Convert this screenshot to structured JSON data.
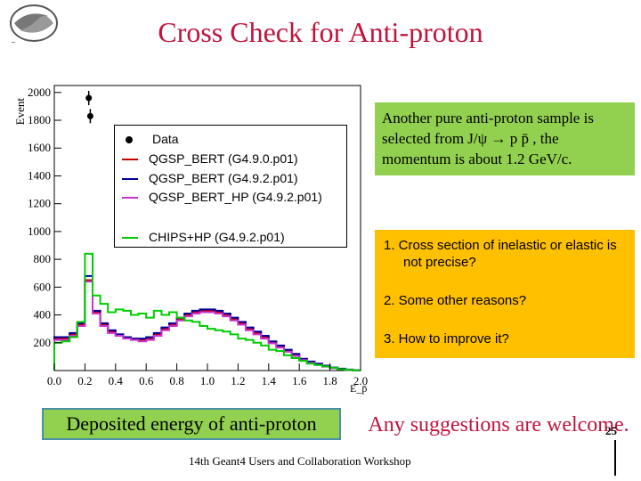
{
  "slide": {
    "title": "Cross Check for Anti-proton",
    "caption": "Deposited energy of anti-proton",
    "suggestion": "Any suggestions are welcome.",
    "footer": "14th Geant4 Users and Collaboration Workshop",
    "page_number": "25",
    "info_text": "Another pure anti-proton sample is selected from J/ψ → p p̄ , the momentum is  about 1.2 GeV/c.",
    "reasons": [
      "1.  Cross section of inelastic or elastic is not precise?",
      "2.  Some other reasons?",
      "3.  How to improve it?"
    ],
    "colors": {
      "title": "#c0143c",
      "info_bg": "#92d050",
      "reasons_bg": "#ffc000",
      "caption_bg": "#92d050"
    }
  },
  "chart_data": {
    "type": "histogram",
    "ylabel": "Event",
    "xlabel": "E_p̄",
    "xlim": [
      0.0,
      2.0
    ],
    "ylim": [
      0,
      2050
    ],
    "x_ticks": [
      "0.0",
      "0.2",
      "0.4",
      "0.6",
      "0.8",
      "1.0",
      "1.2",
      "1.4",
      "1.6",
      "1.8",
      "2.0"
    ],
    "y_ticks": [
      "200",
      "400",
      "600",
      "800",
      "1000",
      "1200",
      "1400",
      "1600",
      "1800",
      "2000"
    ],
    "legend": [
      {
        "label": "Data",
        "color": "#000000",
        "marker": "dot"
      },
      {
        "label": "QGSP_BERT (G4.9.0.p01)",
        "color": "#cc0000"
      },
      {
        "label": "QGSP_BERT (G4.9.2.p01)",
        "color": "#000099"
      },
      {
        "label": "QGSP_BERT_HP (G4.9.2.p01)",
        "color": "#cc33cc"
      },
      {
        "label": "CHIPS+HP (G4.9.2.p01)",
        "color": "#00cc00"
      }
    ],
    "data_points": [
      {
        "x": 0.225,
        "y": 1960
      },
      {
        "x": 0.235,
        "y": 1830
      }
    ],
    "x": [
      0.025,
      0.075,
      0.125,
      0.175,
      0.225,
      0.275,
      0.325,
      0.375,
      0.425,
      0.475,
      0.525,
      0.575,
      0.625,
      0.675,
      0.725,
      0.775,
      0.825,
      0.875,
      0.925,
      0.975,
      1.025,
      1.075,
      1.125,
      1.175,
      1.225,
      1.275,
      1.325,
      1.375,
      1.425,
      1.475,
      1.525,
      1.575,
      1.625,
      1.675,
      1.725,
      1.775,
      1.825,
      1.875,
      1.925,
      1.975
    ],
    "series": [
      {
        "name": "QGSP_BERT (G4.9.0.p01)",
        "color": "#cc0000",
        "values": [
          230,
          230,
          260,
          330,
          650,
          420,
          330,
          280,
          260,
          240,
          230,
          220,
          230,
          260,
          300,
          330,
          370,
          400,
          420,
          430,
          430,
          420,
          400,
          370,
          340,
          300,
          270,
          240,
          200,
          170,
          140,
          110,
          80,
          60,
          45,
          30,
          20,
          12,
          6,
          2
        ]
      },
      {
        "name": "QGSP_BERT (G4.9.2.p01)",
        "color": "#000099",
        "values": [
          240,
          240,
          270,
          340,
          680,
          430,
          340,
          290,
          260,
          240,
          230,
          230,
          240,
          270,
          310,
          340,
          380,
          410,
          430,
          440,
          440,
          430,
          410,
          380,
          350,
          310,
          280,
          250,
          210,
          180,
          150,
          120,
          85,
          65,
          50,
          35,
          22,
          14,
          7,
          3
        ]
      },
      {
        "name": "QGSP_BERT_HP (G4.9.2.p01)",
        "color": "#cc33cc",
        "values": [
          220,
          220,
          250,
          320,
          640,
          410,
          320,
          270,
          250,
          230,
          220,
          210,
          220,
          250,
          290,
          320,
          360,
          390,
          410,
          420,
          420,
          410,
          390,
          360,
          330,
          290,
          260,
          230,
          195,
          165,
          135,
          105,
          75,
          55,
          40,
          28,
          18,
          10,
          5,
          2
        ]
      },
      {
        "name": "CHIPS+HP (G4.9.2.p01)",
        "color": "#00cc00",
        "values": [
          200,
          210,
          240,
          350,
          840,
          540,
          480,
          420,
          440,
          430,
          400,
          410,
          380,
          430,
          400,
          420,
          380,
          360,
          350,
          320,
          300,
          290,
          280,
          260,
          230,
          220,
          200,
          180,
          150,
          140,
          110,
          90,
          70,
          50,
          40,
          30,
          20,
          10,
          5,
          2
        ]
      }
    ]
  }
}
